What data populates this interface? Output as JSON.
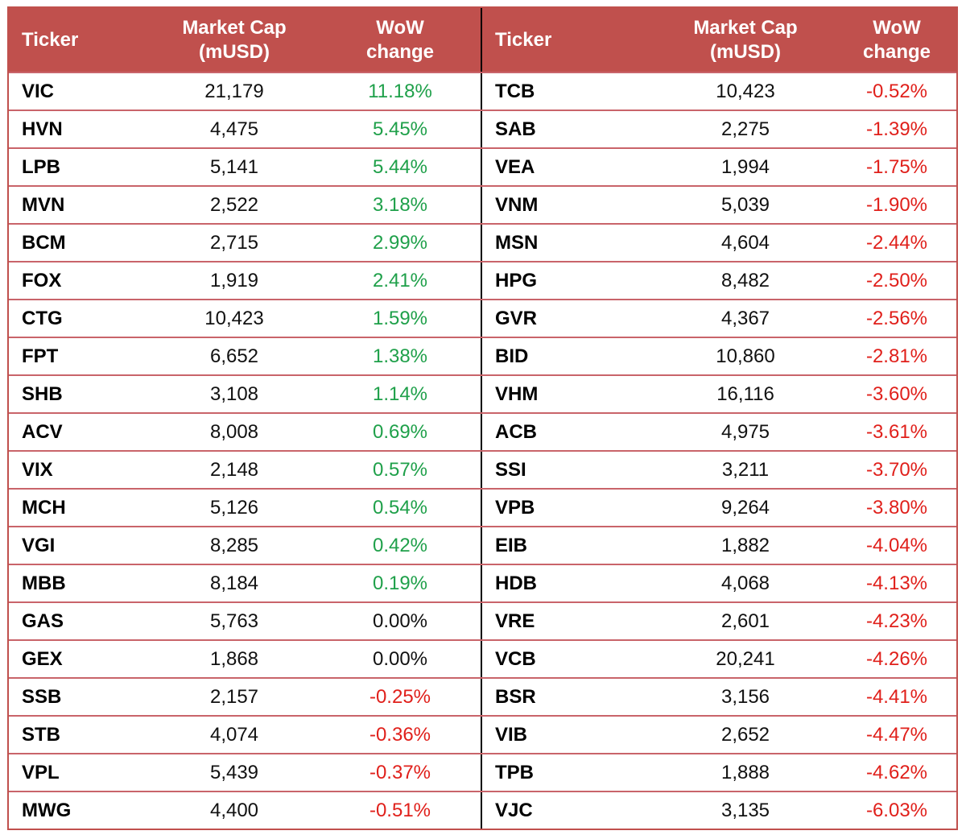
{
  "headers": {
    "ticker": "Ticker",
    "market_cap": "Market Cap\n(mUSD)",
    "market_cap_l1": "Market Cap",
    "market_cap_l2": "(mUSD)",
    "wow_l1": "WoW",
    "wow_l2": "change"
  },
  "colors": {
    "header_bg": "#c0504d",
    "positive": "#1fa04a",
    "negative": "#e0201b",
    "neutral": "#111111"
  },
  "left": [
    {
      "ticker": "VIC",
      "cap": "21,179",
      "wow": "11.18%"
    },
    {
      "ticker": "HVN",
      "cap": "4,475",
      "wow": "5.45%"
    },
    {
      "ticker": "LPB",
      "cap": "5,141",
      "wow": "5.44%"
    },
    {
      "ticker": "MVN",
      "cap": "2,522",
      "wow": "3.18%"
    },
    {
      "ticker": "BCM",
      "cap": "2,715",
      "wow": "2.99%"
    },
    {
      "ticker": "FOX",
      "cap": "1,919",
      "wow": "2.41%"
    },
    {
      "ticker": "CTG",
      "cap": "10,423",
      "wow": "1.59%"
    },
    {
      "ticker": "FPT",
      "cap": "6,652",
      "wow": "1.38%"
    },
    {
      "ticker": "SHB",
      "cap": "3,108",
      "wow": "1.14%"
    },
    {
      "ticker": "ACV",
      "cap": "8,008",
      "wow": "0.69%"
    },
    {
      "ticker": "VIX",
      "cap": "2,148",
      "wow": "0.57%"
    },
    {
      "ticker": "MCH",
      "cap": "5,126",
      "wow": "0.54%"
    },
    {
      "ticker": "VGI",
      "cap": "8,285",
      "wow": "0.42%"
    },
    {
      "ticker": "MBB",
      "cap": "8,184",
      "wow": "0.19%"
    },
    {
      "ticker": "GAS",
      "cap": "5,763",
      "wow": "0.00%"
    },
    {
      "ticker": "GEX",
      "cap": "1,868",
      "wow": "0.00%"
    },
    {
      "ticker": "SSB",
      "cap": "2,157",
      "wow": "-0.25%"
    },
    {
      "ticker": "STB",
      "cap": "4,074",
      "wow": "-0.36%"
    },
    {
      "ticker": "VPL",
      "cap": "5,439",
      "wow": "-0.37%"
    },
    {
      "ticker": "MWG",
      "cap": "4,400",
      "wow": "-0.51%"
    }
  ],
  "right": [
    {
      "ticker": "TCB",
      "cap": "10,423",
      "wow": "-0.52%"
    },
    {
      "ticker": "SAB",
      "cap": "2,275",
      "wow": "-1.39%"
    },
    {
      "ticker": "VEA",
      "cap": "1,994",
      "wow": "-1.75%"
    },
    {
      "ticker": "VNM",
      "cap": "5,039",
      "wow": "-1.90%"
    },
    {
      "ticker": "MSN",
      "cap": "4,604",
      "wow": "-2.44%"
    },
    {
      "ticker": "HPG",
      "cap": "8,482",
      "wow": "-2.50%"
    },
    {
      "ticker": "GVR",
      "cap": "4,367",
      "wow": "-2.56%"
    },
    {
      "ticker": "BID",
      "cap": "10,860",
      "wow": "-2.81%"
    },
    {
      "ticker": "VHM",
      "cap": "16,116",
      "wow": "-3.60%"
    },
    {
      "ticker": "ACB",
      "cap": "4,975",
      "wow": "-3.61%"
    },
    {
      "ticker": "SSI",
      "cap": "3,211",
      "wow": "-3.70%"
    },
    {
      "ticker": "VPB",
      "cap": "9,264",
      "wow": "-3.80%"
    },
    {
      "ticker": "EIB",
      "cap": "1,882",
      "wow": "-4.04%"
    },
    {
      "ticker": "HDB",
      "cap": "4,068",
      "wow": "-4.13%"
    },
    {
      "ticker": "VRE",
      "cap": "2,601",
      "wow": "-4.23%"
    },
    {
      "ticker": "VCB",
      "cap": "20,241",
      "wow": "-4.26%"
    },
    {
      "ticker": "BSR",
      "cap": "3,156",
      "wow": "-4.41%"
    },
    {
      "ticker": "VIB",
      "cap": "2,652",
      "wow": "-4.47%"
    },
    {
      "ticker": "TPB",
      "cap": "1,888",
      "wow": "-4.62%"
    },
    {
      "ticker": "VJC",
      "cap": "3,135",
      "wow": "-6.03%"
    }
  ]
}
